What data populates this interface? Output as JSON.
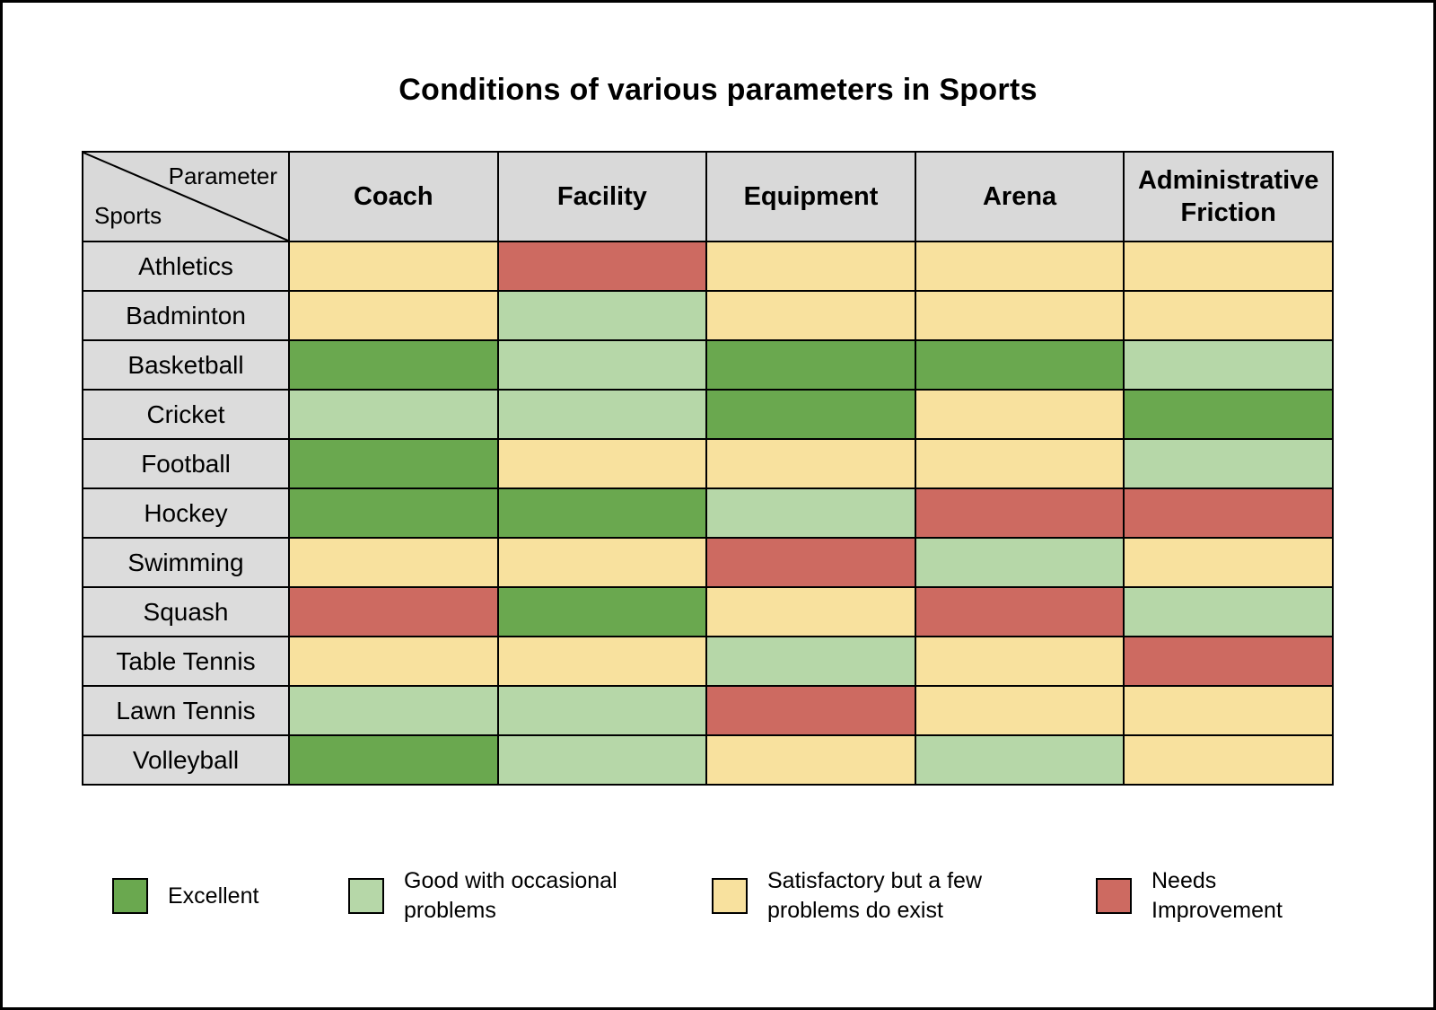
{
  "colors": {
    "excellent": "#6aa84f",
    "good": "#b6d7a8",
    "satisfactory": "#f8e19e",
    "needs": "#cd6a61",
    "header_bg": "#d9d9d9",
    "row_label_bg": "#dcdcdc",
    "border": "#000000"
  },
  "chart_data": {
    "type": "heatmap",
    "title": "Conditions of various parameters in Sports",
    "corner_top": "Parameter",
    "corner_bottom": "Sports",
    "columns": [
      "Coach",
      "Facility",
      "Equipment",
      "Arena",
      "Administrative Friction"
    ],
    "rows": [
      "Athletics",
      "Badminton",
      "Basketball",
      "Cricket",
      "Football",
      "Hockey",
      "Swimming",
      "Squash",
      "Table Tennis",
      "Lawn Tennis",
      "Volleyball"
    ],
    "values": [
      [
        "satisfactory",
        "needs",
        "satisfactory",
        "satisfactory",
        "satisfactory"
      ],
      [
        "satisfactory",
        "good",
        "satisfactory",
        "satisfactory",
        "satisfactory"
      ],
      [
        "excellent",
        "good",
        "excellent",
        "excellent",
        "good"
      ],
      [
        "good",
        "good",
        "excellent",
        "satisfactory",
        "excellent"
      ],
      [
        "excellent",
        "satisfactory",
        "satisfactory",
        "satisfactory",
        "good"
      ],
      [
        "excellent",
        "excellent",
        "good",
        "needs",
        "needs"
      ],
      [
        "satisfactory",
        "satisfactory",
        "needs",
        "good",
        "satisfactory"
      ],
      [
        "needs",
        "excellent",
        "satisfactory",
        "needs",
        "good"
      ],
      [
        "satisfactory",
        "satisfactory",
        "good",
        "satisfactory",
        "needs"
      ],
      [
        "good",
        "good",
        "needs",
        "satisfactory",
        "satisfactory"
      ],
      [
        "excellent",
        "good",
        "satisfactory",
        "good",
        "satisfactory"
      ]
    ],
    "value_labels": {
      "excellent": "Excellent",
      "good": "Good with occasional problems",
      "satisfactory": "Satisfactory but a few problems do exist",
      "needs": "Needs Improvement"
    },
    "legend": [
      {
        "key": "excellent",
        "label": "Excellent"
      },
      {
        "key": "good",
        "label": "Good with occasional problems"
      },
      {
        "key": "satisfactory",
        "label": "Satisfactory but a few problems do exist"
      },
      {
        "key": "needs",
        "label": "Needs Improvement"
      }
    ],
    "legend_position": "bottom"
  }
}
